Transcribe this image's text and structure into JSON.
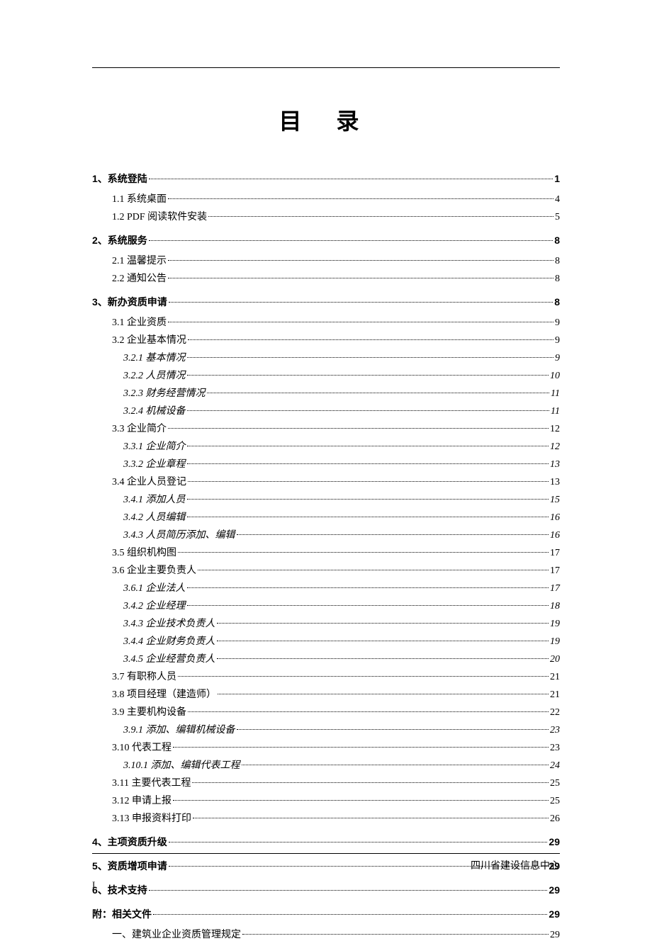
{
  "title": "目   录",
  "footer_org": "四川省建设信息中心",
  "footer_page": "I",
  "entries": [
    {
      "level": 1,
      "label": "1、系统登陆",
      "page": "1"
    },
    {
      "level": 2,
      "label": "1.1 系统桌面",
      "page": "4"
    },
    {
      "level": 2,
      "label": "1.2  PDF 阅读软件安装",
      "page": "5"
    },
    {
      "level": 1,
      "label": "2、系统服务",
      "page": "8"
    },
    {
      "level": 2,
      "label": "2.1 温馨提示",
      "page": "8"
    },
    {
      "level": 2,
      "label": "2.2 通知公告",
      "page": "8"
    },
    {
      "level": 1,
      "label": "3、新办资质申请",
      "page": "8"
    },
    {
      "level": 2,
      "label": "3.1 企业资质",
      "page": "9"
    },
    {
      "level": 2,
      "label": "3.2 企业基本情况",
      "page": "9"
    },
    {
      "level": 3,
      "label": "3.2.1 基本情况",
      "page": "9"
    },
    {
      "level": 3,
      "label": "3.2.2 人员情况",
      "page": "10"
    },
    {
      "level": 3,
      "label": "3.2.3 财务经营情况",
      "page": "11"
    },
    {
      "level": 3,
      "label": "3.2.4 机械设备",
      "page": "11"
    },
    {
      "level": 2,
      "label": "3.3 企业简介",
      "page": "12"
    },
    {
      "level": 3,
      "label": "3.3.1 企业简介",
      "page": "12"
    },
    {
      "level": 3,
      "label": "3.3.2 企业章程",
      "page": "13"
    },
    {
      "level": 2,
      "label": "3.4 企业人员登记",
      "page": "13"
    },
    {
      "level": 3,
      "label": "3.4.1 添加人员",
      "page": "15"
    },
    {
      "level": 3,
      "label": "3.4.2 人员编辑",
      "page": "16"
    },
    {
      "level": 3,
      "label": "3.4.3 人员简历添加、编辑",
      "page": "16"
    },
    {
      "level": 2,
      "label": "3.5 组织机构图",
      "page": "17"
    },
    {
      "level": 2,
      "label": "3.6 企业主要负责人",
      "page": "17"
    },
    {
      "level": 3,
      "label": "3.6.1 企业法人",
      "page": "17"
    },
    {
      "level": 3,
      "label": "3.4.2 企业经理",
      "page": "18"
    },
    {
      "level": 3,
      "label": "3.4.3 企业技术负责人",
      "page": "19"
    },
    {
      "level": 3,
      "label": "3.4.4 企业财务负责人",
      "page": "19"
    },
    {
      "level": 3,
      "label": "3.4.5 企业经营负责人",
      "page": "20"
    },
    {
      "level": 2,
      "label": "3.7 有职称人员",
      "page": "21"
    },
    {
      "level": 2,
      "label": "3.8 项目经理（建造师）",
      "page": "21"
    },
    {
      "level": 2,
      "label": "3.9 主要机构设备",
      "page": "22"
    },
    {
      "level": 3,
      "label": "3.9.1 添加、编辑机械设备",
      "page": "23"
    },
    {
      "level": 2,
      "label": "3.10 代表工程",
      "page": "23"
    },
    {
      "level": 3,
      "label": "3.10.1 添加、编辑代表工程",
      "page": "24"
    },
    {
      "level": 2,
      "label": "3.11 主要代表工程",
      "page": "25"
    },
    {
      "level": 2,
      "label": "3.12 申请上报",
      "page": "25"
    },
    {
      "level": 2,
      "label": "3.13 申报资料打印",
      "page": "26"
    },
    {
      "level": 1,
      "label": "4、主项资质升级",
      "page": "29"
    },
    {
      "level": 1,
      "label": "5、资质增项申请",
      "page": "29"
    },
    {
      "level": 1,
      "label": "6、技术支持",
      "page": "29"
    },
    {
      "level": 1,
      "label": "附：相关文件",
      "page": "29"
    },
    {
      "level": 2,
      "label": "一、建筑业企业资质管理规定",
      "page": "29"
    }
  ]
}
